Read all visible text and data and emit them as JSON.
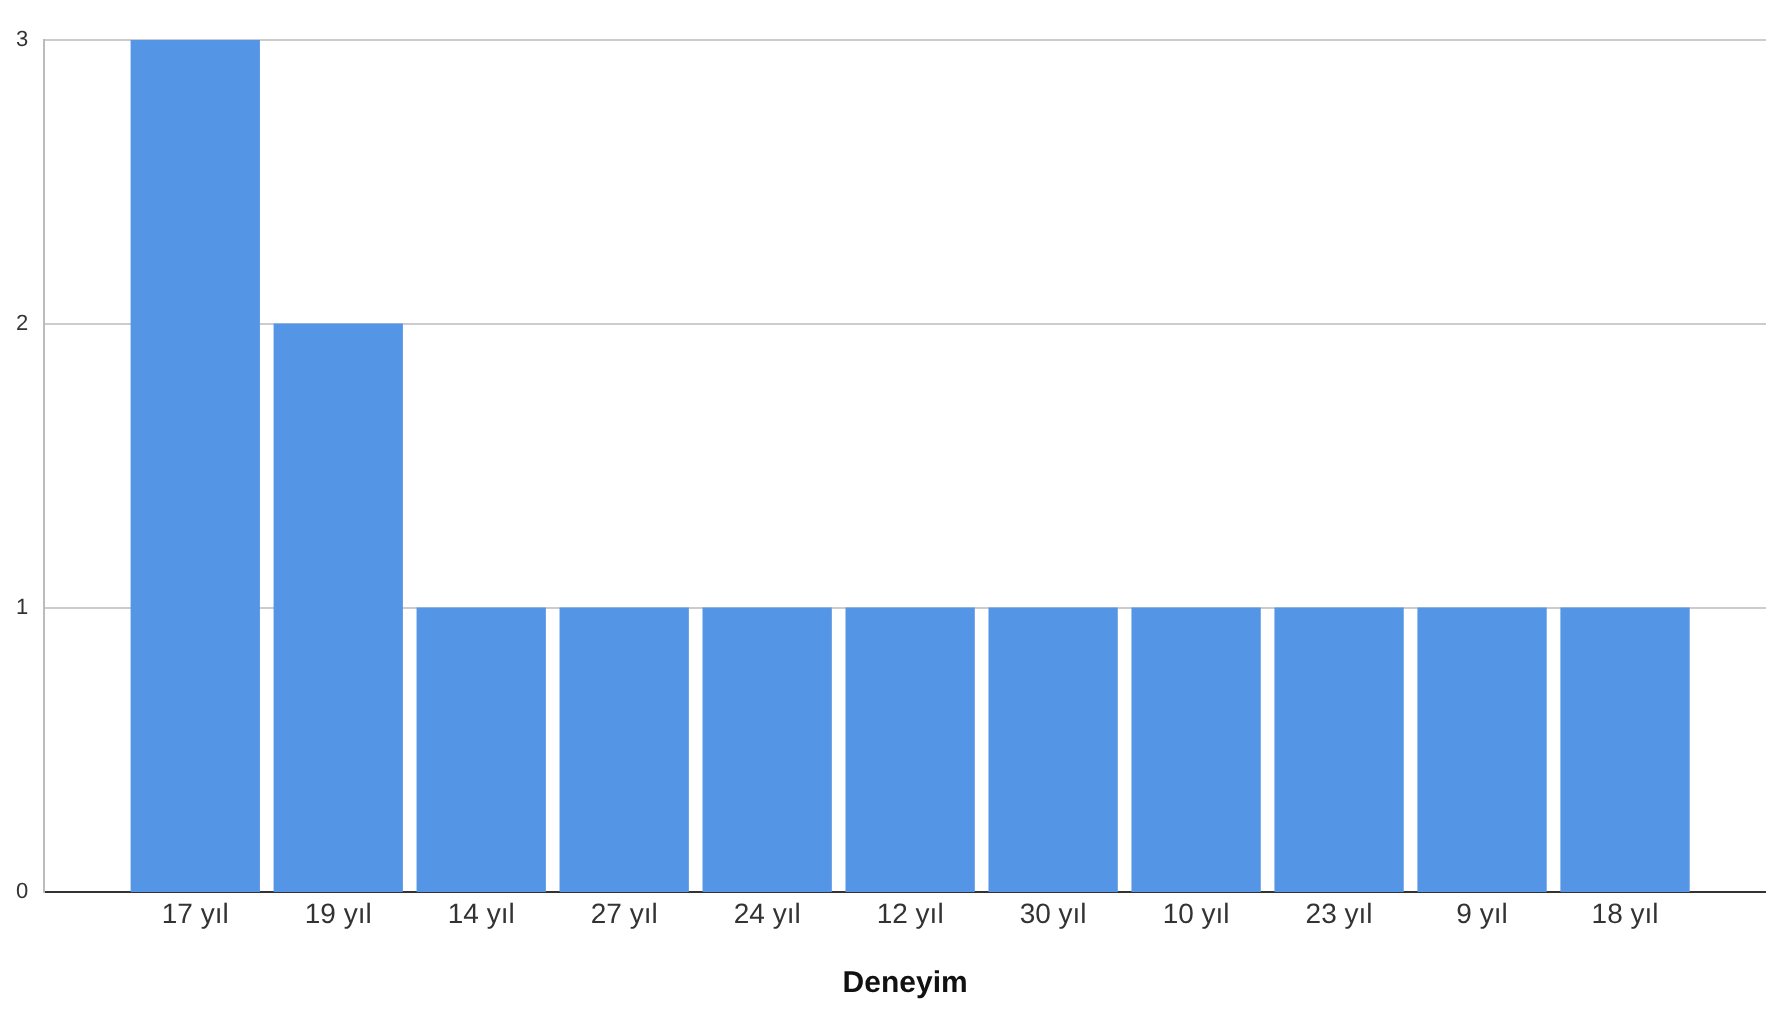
{
  "chart_data": {
    "type": "bar",
    "xlabel": "Deneyim",
    "categories": [
      "17 yıl",
      "19 yıl",
      "14 yıl",
      "27 yıl",
      "24 yıl",
      "12 yıl",
      "30 yıl",
      "10 yıl",
      "23 yıl",
      "9 yıl",
      "18 yıl"
    ],
    "values": [
      3,
      2,
      1,
      1,
      1,
      1,
      1,
      1,
      1,
      1,
      1
    ],
    "color": "#5595e5",
    "ylim": [
      0,
      3
    ],
    "yticks": [
      0,
      1,
      2,
      3
    ],
    "grid": "y",
    "legend": false
  }
}
